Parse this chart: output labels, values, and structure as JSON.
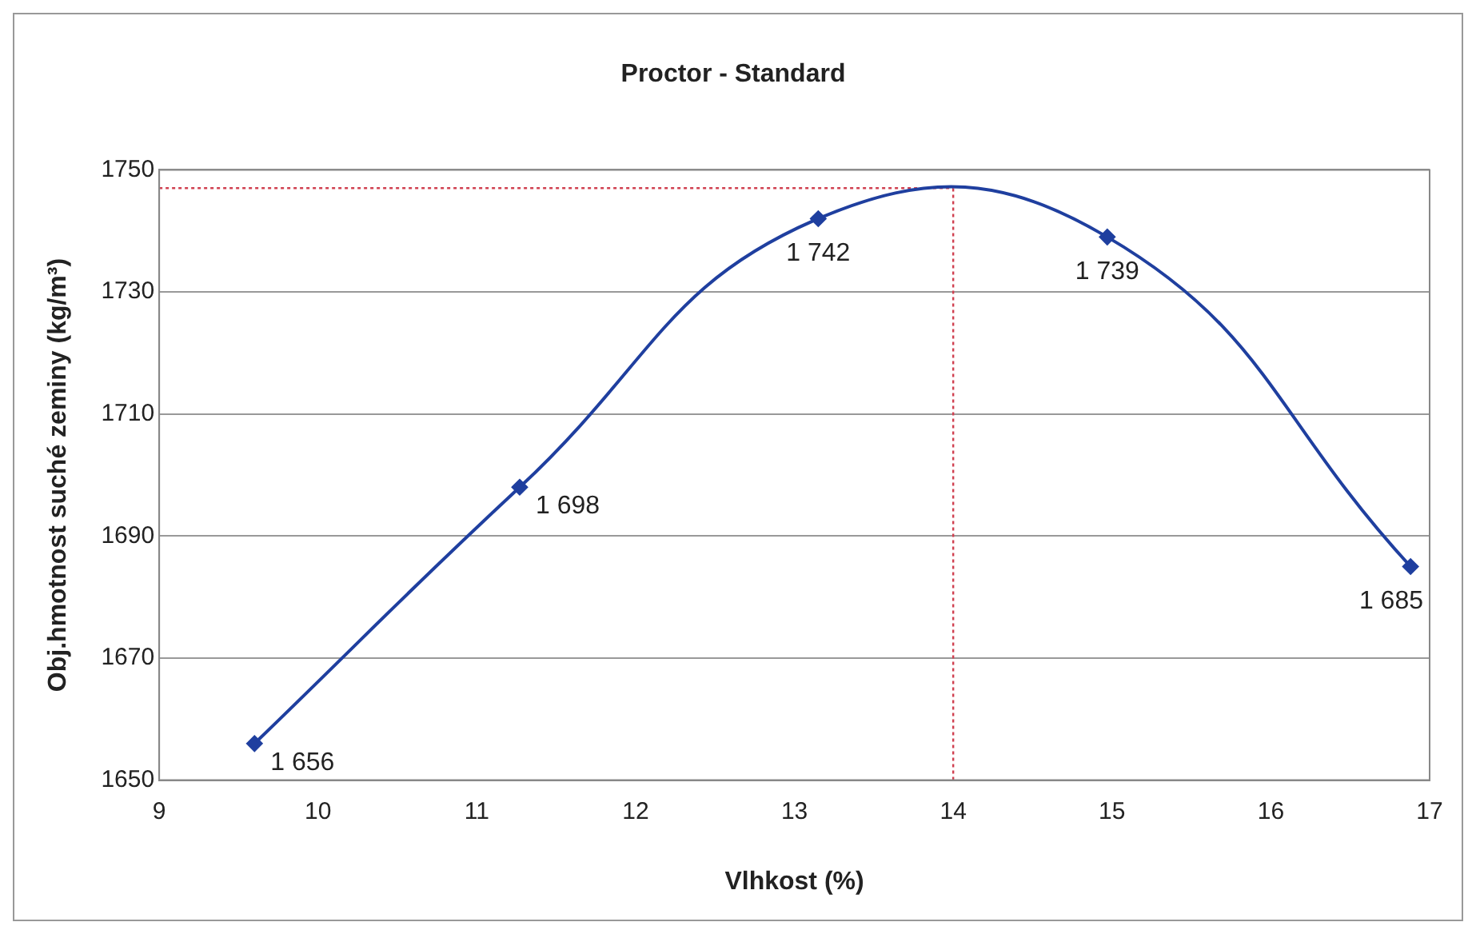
{
  "chart_data": {
    "type": "line",
    "title": "Proctor - Standard",
    "xlabel": "Vlhkost (%)",
    "ylabel": "Obj.hmotnost suché zeminy (kg/m³)",
    "x": [
      9.6,
      11.27,
      13.15,
      14.97,
      16.88
    ],
    "series": [
      {
        "color": "#1f3f9f",
        "values": [
          1656,
          1698,
          1742,
          1739,
          1685
        ],
        "value_labels": [
          "1 656",
          "1 698",
          "1 742",
          "1 739",
          "1 685"
        ]
      }
    ],
    "xlim": [
      9,
      17
    ],
    "xticks": [
      9,
      10,
      11,
      12,
      13,
      14,
      15,
      16,
      17
    ],
    "ylim": [
      1650,
      1750
    ],
    "yticks": [
      1650,
      1670,
      1690,
      1710,
      1730,
      1750
    ],
    "grid": "y",
    "marker": "diamond",
    "line_style": "solid",
    "legend": false,
    "ref_lines": [
      {
        "axis": "x",
        "value": 14,
        "color": "#d04050",
        "line_style": "dotted"
      },
      {
        "axis": "y",
        "value": 1747,
        "color": "#d04050",
        "line_style": "dotted"
      }
    ]
  }
}
